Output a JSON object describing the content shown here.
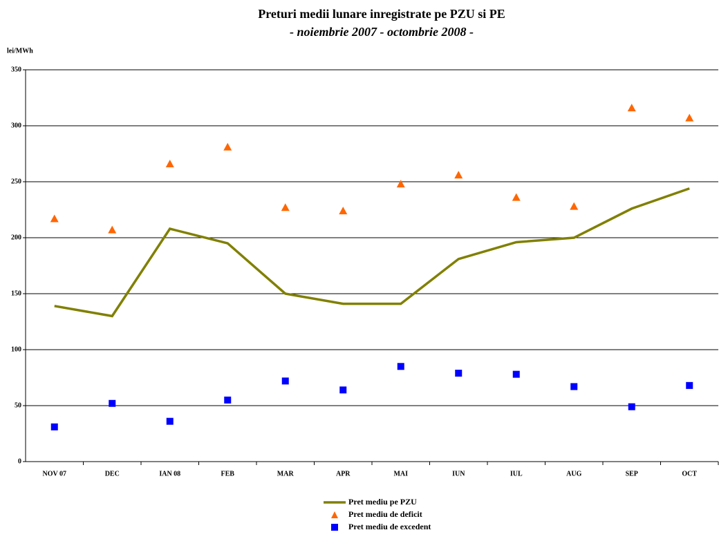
{
  "chart_data": {
    "type": "line",
    "title": "Preturi medii lunare inregistrate pe PZU si PE",
    "subtitle": "- noiembrie 2007 - octombrie 2008 -",
    "y_label": "lei/MWh",
    "categories": [
      "NOV 07",
      "DEC",
      "IAN 08",
      "FEB",
      "MAR",
      "APR",
      "MAI",
      "IUN",
      "IUL",
      "AUG",
      "SEP",
      "OCT"
    ],
    "series": [
      {
        "name": "Pret mediu pe PZU",
        "color": "#808000",
        "style": "line",
        "values": [
          139,
          130,
          208,
          195,
          150,
          141,
          141,
          181,
          196,
          200,
          226,
          244
        ]
      },
      {
        "name": "Pret mediu de deficit",
        "color": "#ff6600",
        "style": "triangle",
        "values": [
          217,
          207,
          266,
          281,
          227,
          224,
          248,
          256,
          236,
          228,
          316,
          307
        ]
      },
      {
        "name": "Pret mediu de excedent",
        "color": "#0000ff",
        "style": "square",
        "values": [
          31,
          52,
          36,
          55,
          72,
          64,
          85,
          79,
          78,
          67,
          49,
          68
        ]
      }
    ],
    "ylim": [
      0,
      350
    ],
    "yticks": [
      0,
      50,
      100,
      150,
      200,
      250,
      300,
      350
    ],
    "grid": true
  }
}
